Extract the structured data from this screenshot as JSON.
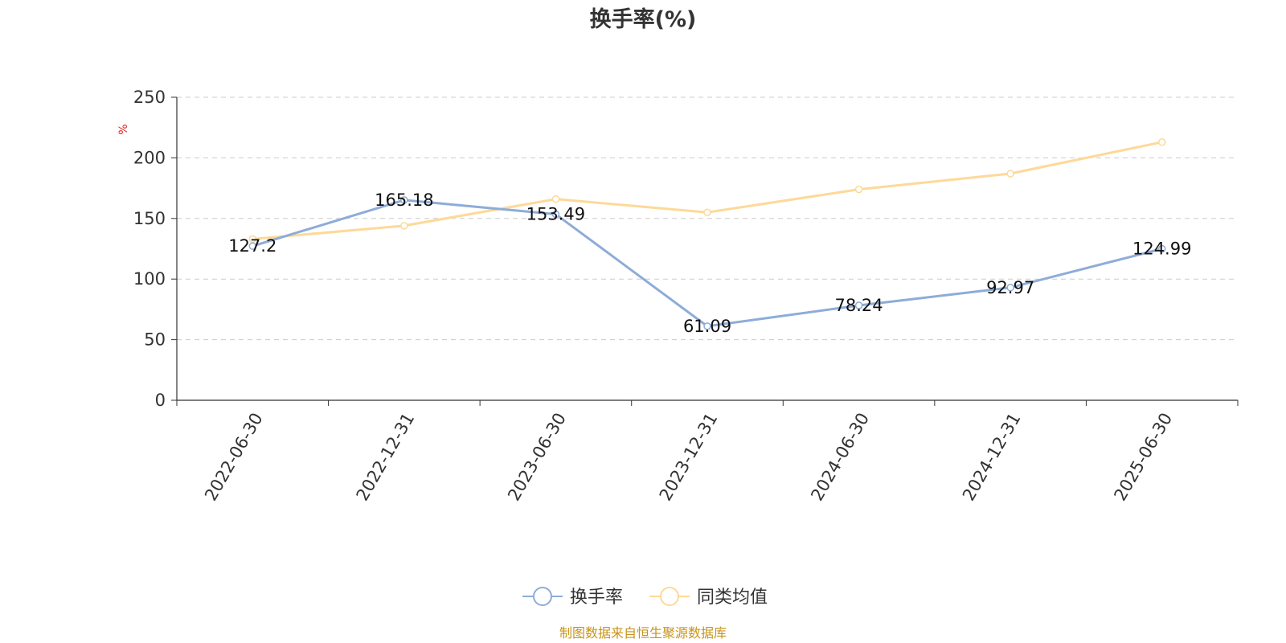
{
  "chart_data": {
    "type": "line",
    "title": "换手率(%)",
    "ylabel": "%",
    "ylim": [
      0,
      250
    ],
    "yticks": [
      0,
      50,
      100,
      150,
      200,
      250
    ],
    "categories": [
      "2022-06-30",
      "2022-12-31",
      "2023-06-30",
      "2023-12-31",
      "2024-06-30",
      "2024-12-31",
      "2025-06-30"
    ],
    "series": [
      {
        "name": "换手率",
        "color": "#8eacd8",
        "values": [
          127.2,
          165.18,
          153.49,
          61.09,
          78.24,
          92.97,
          124.99
        ],
        "labels": [
          "127.2",
          "165.18",
          "153.49",
          "61.09",
          "78.24",
          "92.97",
          "124.99"
        ],
        "show_labels": true
      },
      {
        "name": "同类均值",
        "color": "#fdd999",
        "values": [
          133,
          144,
          166,
          155,
          174,
          187,
          213
        ],
        "show_labels": false
      }
    ],
    "grid": true,
    "legend_position": "bottom-center"
  },
  "source": "制图数据来自恒生聚源数据库",
  "colors": {
    "axis": "#333333",
    "grid": "#cccccc",
    "unit": "#e02020",
    "source": "#c8941a"
  }
}
